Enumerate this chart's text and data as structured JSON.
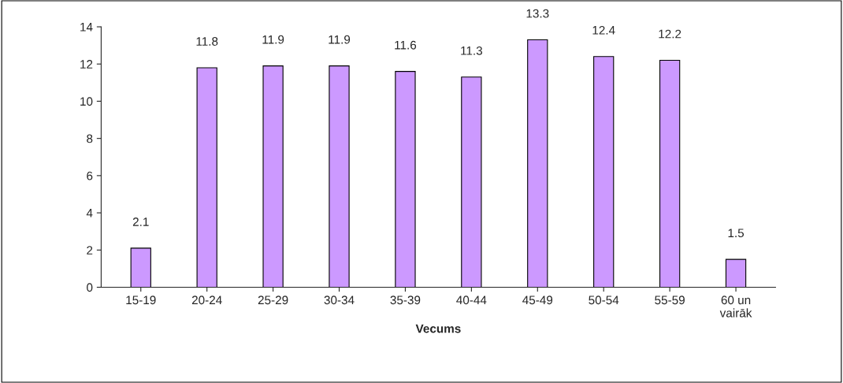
{
  "chart_data": {
    "type": "bar",
    "xlabel": "Vecums",
    "categories": [
      "15-19",
      "20-24",
      "25-29",
      "30-34",
      "35-39",
      "40-44",
      "45-49",
      "50-54",
      "55-59",
      "60 un\nvairāk"
    ],
    "values": [
      2.1,
      11.8,
      11.9,
      11.9,
      11.6,
      11.3,
      13.3,
      12.4,
      12.2,
      1.5
    ],
    "color": "#cc99ff",
    "ylim": [
      0,
      14
    ],
    "yticks": [
      0,
      2,
      4,
      6,
      8,
      10,
      12,
      14
    ],
    "data_labels": true,
    "grid": false,
    "legend": false
  }
}
